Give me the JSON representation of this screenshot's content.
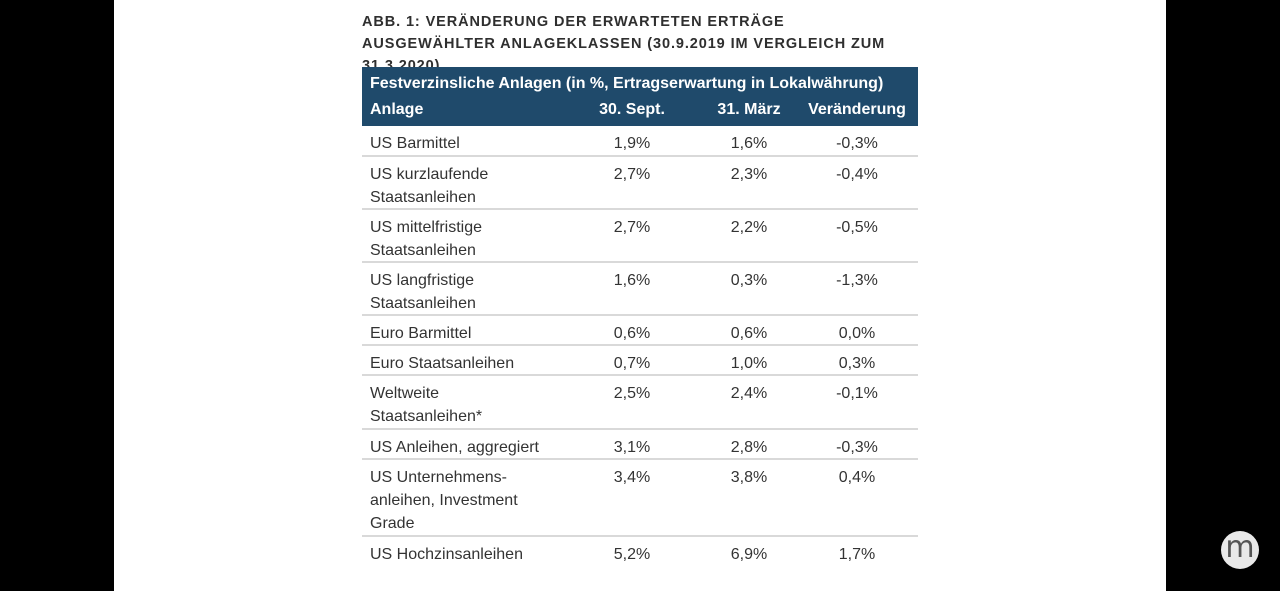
{
  "figure": {
    "caption": "ABB. 1: VERÄNDERUNG DER ERWARTETEN ERTRÄGE AUSGEWÄHLTER ANLAGEKLASSEN (30.9.2019 IM VERGLEICH ZUM 31.3.2020)"
  },
  "table": {
    "title": "Festverzinsliche Anlagen (in %, Ertragserwartung in Lokalwährung)",
    "columns": [
      "Anlage",
      "30. Sept.",
      "31. März",
      "Veränderung"
    ],
    "rows": [
      {
        "anlage": "US Barmittel",
        "sept": "1,9%",
        "maerz": "1,6%",
        "veraenderung": "-0,3%"
      },
      {
        "anlage": "US kurzlaufende\nStaatsanleihen",
        "sept": "2,7%",
        "maerz": "2,3%",
        "veraenderung": "-0,4%"
      },
      {
        "anlage": "US mittelfristige\nStaatsanleihen",
        "sept": "2,7%",
        "maerz": "2,2%",
        "veraenderung": "-0,5%"
      },
      {
        "anlage": "US langfristige\nStaatsanleihen",
        "sept": "1,6%",
        "maerz": "0,3%",
        "veraenderung": "-1,3%"
      },
      {
        "anlage": "Euro Barmittel",
        "sept": "0,6%",
        "maerz": "0,6%",
        "veraenderung": "0,0%"
      },
      {
        "anlage": "Euro Staatsanleihen",
        "sept": "0,7%",
        "maerz": "1,0%",
        "veraenderung": "0,3%"
      },
      {
        "anlage": "Weltweite\nStaatsanleihen*",
        "sept": "2,5%",
        "maerz": "2,4%",
        "veraenderung": "-0,1%"
      },
      {
        "anlage": "US Anleihen, aggregiert",
        "sept": "3,1%",
        "maerz": "2,8%",
        "veraenderung": "-0,3%"
      },
      {
        "anlage": "US Unternehmens-\nanleihen, Investment\nGrade",
        "sept": "3,4%",
        "maerz": "3,8%",
        "veraenderung": "0,4%"
      },
      {
        "anlage": "US Hochzinsanleihen",
        "sept": "5,2%",
        "maerz": "6,9%",
        "veraenderung": "1,7%"
      }
    ]
  },
  "watermark": {
    "logo_letter": "m",
    "icon": "m-logo-icon"
  },
  "colors": {
    "header_bg": "#1f4a6b",
    "row_divider": "#d9d9d9"
  }
}
